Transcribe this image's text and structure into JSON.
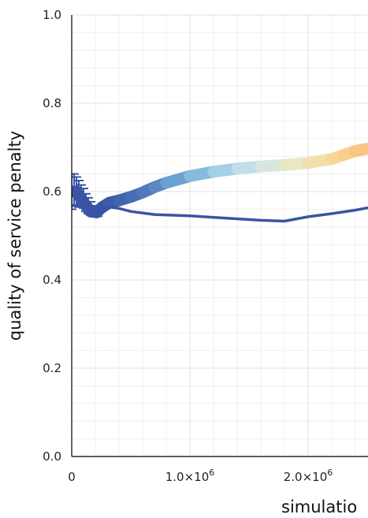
{
  "chart_data": {
    "type": "line",
    "ylabel": "quality of service penalty",
    "xlabel": "simulatio",
    "ylim": [
      0.0,
      1.0
    ],
    "xlim_visible": [
      0,
      2500000
    ],
    "yticks": [
      "0.0",
      "0.2",
      "0.4",
      "0.6",
      "0.8",
      "1.0"
    ],
    "xticks": [
      {
        "value": 0,
        "base": "0",
        "exp": ""
      },
      {
        "value": 1000000,
        "base": "1.0×10",
        "exp": "6"
      },
      {
        "value": 2000000,
        "base": "2.0×10",
        "exp": "6"
      }
    ],
    "grid": true,
    "colors": {
      "dark_blue": "#3a55a4",
      "gradient": [
        "#3a55a4",
        "#4a74b9",
        "#6ea5d3",
        "#9ccbe3",
        "#c8e4ed",
        "#e8e9c8",
        "#f5dca0",
        "#f9c27c"
      ]
    },
    "series": [
      {
        "style": "thick-colored",
        "x": [
          0,
          40000,
          100000,
          160000,
          210000,
          260000,
          320000,
          400000,
          500000,
          600000,
          700000,
          800000,
          1000000,
          1200000,
          1400000,
          1600000,
          1800000,
          2000000,
          2200000,
          2300000,
          2400000,
          2500000
        ],
        "y": [
          0.6,
          0.6,
          0.575,
          0.555,
          0.553,
          0.565,
          0.575,
          0.58,
          0.588,
          0.598,
          0.61,
          0.62,
          0.635,
          0.645,
          0.652,
          0.657,
          0.66,
          0.665,
          0.674,
          0.683,
          0.692,
          0.697
        ]
      },
      {
        "style": "thin-dark",
        "x": [
          0,
          40000,
          100000,
          150000,
          200000,
          260000,
          320000,
          400000,
          500000,
          700000,
          1000000,
          1300000,
          1600000,
          1800000,
          2000000,
          2200000,
          2400000,
          2500000
        ],
        "y": [
          0.61,
          0.59,
          0.56,
          0.545,
          0.548,
          0.56,
          0.565,
          0.562,
          0.555,
          0.548,
          0.545,
          0.54,
          0.535,
          0.533,
          0.543,
          0.55,
          0.558,
          0.563
        ]
      },
      {
        "style": "error-bars",
        "x": [
          0,
          20000,
          40000,
          60000,
          80000,
          100000,
          120000,
          140000,
          160000,
          180000,
          200000,
          220000
        ],
        "y": [
          0.6,
          0.605,
          0.6,
          0.595,
          0.59,
          0.585,
          0.575,
          0.568,
          0.562,
          0.556,
          0.553,
          0.552
        ],
        "err": [
          0.04,
          0.035,
          0.033,
          0.03,
          0.025,
          0.022,
          0.02,
          0.018,
          0.015,
          0.012,
          0.01,
          0.008
        ]
      }
    ]
  }
}
